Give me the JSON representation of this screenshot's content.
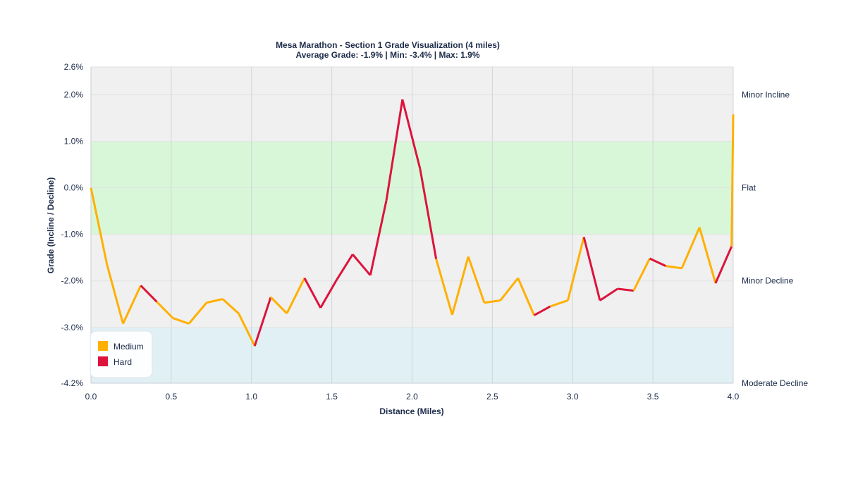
{
  "chart_data": {
    "type": "line",
    "title": "Mesa Marathon - Section 1 Grade Visualization (4 miles)",
    "subtitle": "Average Grade: -1.9% | Min: -3.4% | Max: 1.9%",
    "xlabel": "Distance (Miles)",
    "ylabel": "Grade (Incline / Decline)",
    "xlim": [
      0,
      4
    ],
    "ylim": [
      -4.2,
      2.6
    ],
    "x_ticks": [
      "0.0",
      "0.5",
      "1.0",
      "1.5",
      "2.0",
      "2.5",
      "3.0",
      "3.5",
      "4.0"
    ],
    "x_tick_values": [
      0,
      0.5,
      1,
      1.5,
      2,
      2.5,
      3,
      3.5,
      4
    ],
    "y_ticks": [
      "2.6%",
      "2.0%",
      "1.0%",
      "0.0%",
      "-1.0%",
      "-2.0%",
      "-3.0%",
      "-4.2%"
    ],
    "y_tick_values": [
      2.6,
      2,
      1,
      0,
      -1,
      -2,
      -3,
      -4.2
    ],
    "grid": true,
    "legend_placement": "bottom-left",
    "colors": {
      "Medium": "#ffb000",
      "Hard": "#dc143c"
    },
    "zones": [
      {
        "label": "Moderate Decline",
        "from": -4.2,
        "to": -3.0,
        "color": "#e1f0f5"
      },
      {
        "label": "Minor Decline",
        "from": -3.0,
        "to": -1.0,
        "color": "#f0f0f0"
      },
      {
        "label": "Flat",
        "from": -1.0,
        "to": 1.0,
        "color": "#d8f7d8"
      },
      {
        "label": "Minor Incline",
        "from": 1.0,
        "to": 2.6,
        "color": "#f0f0f0"
      }
    ],
    "legend": [
      {
        "name": "Medium",
        "color": "#ffb000"
      },
      {
        "name": "Hard",
        "color": "#dc143c"
      }
    ],
    "points": [
      [
        0.0,
        0.0
      ],
      [
        0.1,
        -1.65
      ],
      [
        0.2,
        -2.92
      ],
      [
        0.31,
        -2.1
      ],
      [
        0.41,
        -2.45
      ],
      [
        0.51,
        -2.8
      ],
      [
        0.61,
        -2.92
      ],
      [
        0.72,
        -2.47
      ],
      [
        0.82,
        -2.39
      ],
      [
        0.92,
        -2.7
      ],
      [
        1.02,
        -3.4
      ],
      [
        1.12,
        -2.35
      ],
      [
        1.22,
        -2.7
      ],
      [
        1.33,
        -1.94
      ],
      [
        1.43,
        -2.58
      ],
      [
        1.53,
        -1.98
      ],
      [
        1.63,
        -1.43
      ],
      [
        1.74,
        -1.88
      ],
      [
        1.84,
        -0.27
      ],
      [
        1.94,
        1.9
      ],
      [
        2.05,
        0.41
      ],
      [
        2.15,
        -1.53
      ],
      [
        2.25,
        -2.73
      ],
      [
        2.35,
        -1.48
      ],
      [
        2.45,
        -2.47
      ],
      [
        2.55,
        -2.42
      ],
      [
        2.66,
        -1.94
      ],
      [
        2.76,
        -2.74
      ],
      [
        2.86,
        -2.55
      ],
      [
        2.97,
        -2.42
      ],
      [
        3.07,
        -1.06
      ],
      [
        3.17,
        -2.42
      ],
      [
        3.28,
        -2.17
      ],
      [
        3.38,
        -2.21
      ],
      [
        3.48,
        -1.52
      ],
      [
        3.58,
        -1.68
      ],
      [
        3.68,
        -1.73
      ],
      [
        3.79,
        -0.85
      ],
      [
        3.89,
        -2.05
      ],
      [
        3.99,
        -1.26
      ],
      [
        4.0,
        1.58
      ]
    ],
    "segment_difficulty": [
      "Medium",
      "Medium",
      "Medium",
      "Hard",
      "Medium",
      "Medium",
      "Medium",
      "Medium",
      "Medium",
      "Medium",
      "Hard",
      "Medium",
      "Medium",
      "Hard",
      "Hard",
      "Hard",
      "Hard",
      "Hard",
      "Hard",
      "Hard",
      "Hard",
      "Medium",
      "Medium",
      "Medium",
      "Medium",
      "Medium",
      "Medium",
      "Hard",
      "Medium",
      "Medium",
      "Hard",
      "Hard",
      "Hard",
      "Medium",
      "Hard",
      "Medium",
      "Medium",
      "Medium",
      "Hard",
      "Medium"
    ]
  }
}
